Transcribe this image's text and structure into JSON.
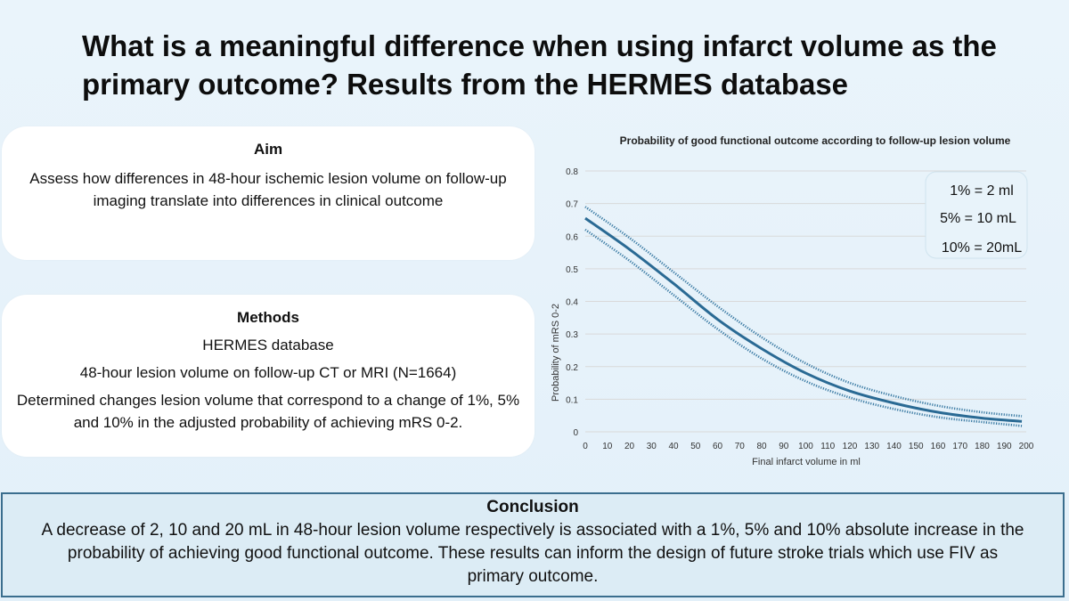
{
  "title": "What is a meaningful difference when using infarct volume as the primary outcome? Results from the HERMES database",
  "aim": {
    "heading": "Aim",
    "text": "Assess how differences in 48-hour ischemic lesion volume on follow-up imaging translate into differences in clinical outcome"
  },
  "methods": {
    "heading": "Methods",
    "lines": [
      "HERMES database",
      "48-hour lesion volume on follow-up CT or MRI (N=1664)",
      "Determined changes lesion volume that correspond to a change of 1%, 5% and 10% in the adjusted probability of achieving mRS 0-2."
    ]
  },
  "conclusion": {
    "heading": "Conclusion",
    "text": "A decrease of 2, 10 and 20 mL in 48-hour lesion volume respectively is associated with a 1%, 5% and 10% absolute increase in the probability of achieving good functional outcome. These results can inform the design of future stroke trials which use FIV as primary outcome."
  },
  "colors": {
    "curve": "#2a6a94",
    "ci": "#3a7aa3",
    "grid": "#d9d9d9",
    "conclusion_border": "#3b6e8e"
  },
  "chart_data": {
    "type": "line",
    "title": "Probability of good functional outcome according to follow-up lesion volume",
    "xlabel": "Final infarct volume in ml",
    "ylabel": "Probability of mRS 0-2",
    "xlim": [
      0,
      200
    ],
    "ylim": [
      0,
      0.8
    ],
    "x_ticks": [
      "0",
      "10",
      "20",
      "30",
      "40",
      "50",
      "60",
      "70",
      "80",
      "90",
      "100",
      "110",
      "120",
      "130",
      "140",
      "150",
      "160",
      "170",
      "180",
      "190",
      "200"
    ],
    "y_ticks": [
      "0",
      "0.1",
      "0.2",
      "0.3",
      "0.4",
      "0.5",
      "0.6",
      "0.7",
      "0.8"
    ],
    "grid": true,
    "series": [
      {
        "style": "solid",
        "x": [
          0,
          20,
          40,
          60,
          80,
          100,
          120,
          140,
          160,
          180,
          198
        ],
        "y": [
          0.655,
          0.56,
          0.455,
          0.345,
          0.255,
          0.18,
          0.125,
          0.088,
          0.06,
          0.042,
          0.032
        ]
      },
      {
        "style": "dotted",
        "x": [
          0,
          20,
          40,
          60,
          80,
          100,
          120,
          140,
          160,
          180,
          198
        ],
        "y": [
          0.69,
          0.595,
          0.49,
          0.385,
          0.29,
          0.21,
          0.15,
          0.11,
          0.08,
          0.06,
          0.048
        ]
      },
      {
        "style": "dotted",
        "x": [
          0,
          20,
          40,
          60,
          80,
          100,
          120,
          140,
          160,
          180,
          198
        ],
        "y": [
          0.62,
          0.525,
          0.42,
          0.315,
          0.225,
          0.155,
          0.105,
          0.07,
          0.045,
          0.03,
          0.018
        ]
      }
    ],
    "annotation_box": [
      "1% = 2 ml",
      "5% = 10 mL",
      "10% = 20mL"
    ]
  }
}
